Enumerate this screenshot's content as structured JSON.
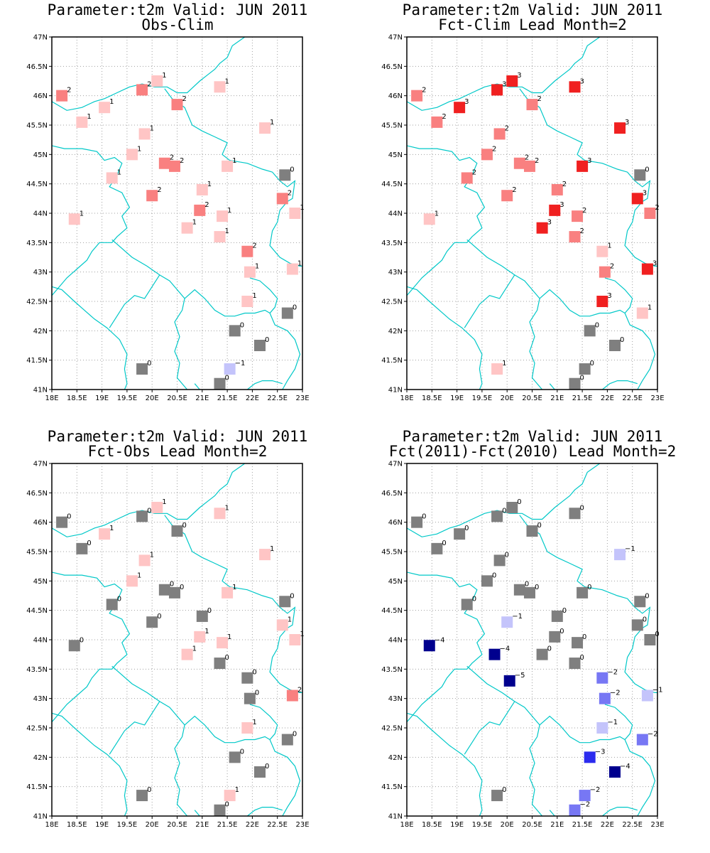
{
  "colors": {
    "neg5": "#00008e",
    "neg4": "#00008e",
    "neg3": "#2b2bee",
    "neg2": "#7777f4",
    "neg1": "#c4c4fb",
    "zero": "#7f7f7f",
    "pos1": "#ffc5c5",
    "pos2": "#f98080",
    "pos3": "#f02020",
    "coast": "#00c8c8",
    "grid": "#a0a0a0",
    "frame": "#000000"
  },
  "x_ticks": [
    "18E",
    "18.5E",
    "19E",
    "19.5E",
    "20E",
    "20.5E",
    "21E",
    "21.5E",
    "22E",
    "22.5E",
    "23E"
  ],
  "y_ticks": [
    "41N",
    "41.5N",
    "42N",
    "42.5N",
    "43N",
    "43.5N",
    "44N",
    "44.5N",
    "45N",
    "45.5N",
    "46N",
    "46.5N",
    "47N"
  ],
  "chart_data": [
    {
      "type": "scatter",
      "title": "Parameter:t2m Valid: JUN 2011",
      "subtitle": "Obs-Clim",
      "xlim": [
        18,
        23
      ],
      "ylim": [
        41,
        47
      ],
      "stations": [
        {
          "lon": 18.2,
          "lat": 46.0,
          "v": 2
        },
        {
          "lon": 19.8,
          "lat": 46.1,
          "v": 2
        },
        {
          "lon": 20.1,
          "lat": 46.25,
          "v": 1
        },
        {
          "lon": 21.35,
          "lat": 46.15,
          "v": 1
        },
        {
          "lon": 19.05,
          "lat": 45.8,
          "v": 1
        },
        {
          "lon": 20.5,
          "lat": 45.85,
          "v": 2
        },
        {
          "lon": 18.6,
          "lat": 45.55,
          "v": 1
        },
        {
          "lon": 22.25,
          "lat": 45.45,
          "v": 1
        },
        {
          "lon": 19.85,
          "lat": 45.35,
          "v": 1
        },
        {
          "lon": 19.6,
          "lat": 45.0,
          "v": 1
        },
        {
          "lon": 20.25,
          "lat": 44.85,
          "v": 2
        },
        {
          "lon": 20.45,
          "lat": 44.8,
          "v": 2
        },
        {
          "lon": 21.5,
          "lat": 44.8,
          "v": 1
        },
        {
          "lon": 22.65,
          "lat": 44.65,
          "v": 0
        },
        {
          "lon": 19.2,
          "lat": 44.6,
          "v": 1
        },
        {
          "lon": 20.0,
          "lat": 44.3,
          "v": 2
        },
        {
          "lon": 21.0,
          "lat": 44.4,
          "v": 1
        },
        {
          "lon": 22.6,
          "lat": 44.25,
          "v": 2
        },
        {
          "lon": 20.95,
          "lat": 44.05,
          "v": 2
        },
        {
          "lon": 22.85,
          "lat": 44.0,
          "v": 1
        },
        {
          "lon": 18.45,
          "lat": 43.9,
          "v": 1
        },
        {
          "lon": 21.4,
          "lat": 43.95,
          "v": 1
        },
        {
          "lon": 20.7,
          "lat": 43.75,
          "v": 1
        },
        {
          "lon": 21.35,
          "lat": 43.6,
          "v": 1
        },
        {
          "lon": 21.9,
          "lat": 43.35,
          "v": 2
        },
        {
          "lon": 21.95,
          "lat": 43.0,
          "v": 1
        },
        {
          "lon": 22.8,
          "lat": 43.05,
          "v": 1
        },
        {
          "lon": 21.9,
          "lat": 42.5,
          "v": 1
        },
        {
          "lon": 22.7,
          "lat": 42.3,
          "v": 0
        },
        {
          "lon": 21.65,
          "lat": 42.0,
          "v": 0
        },
        {
          "lon": 22.15,
          "lat": 41.75,
          "v": 0
        },
        {
          "lon": 19.8,
          "lat": 41.35,
          "v": 0
        },
        {
          "lon": 21.55,
          "lat": 41.35,
          "v": -1
        },
        {
          "lon": 21.35,
          "lat": 41.1,
          "v": 0
        }
      ]
    },
    {
      "type": "scatter",
      "title": "Parameter:t2m Valid: JUN 2011",
      "subtitle": "Fct-Clim Lead Month=2",
      "xlim": [
        18,
        23
      ],
      "ylim": [
        41,
        47
      ],
      "stations": [
        {
          "lon": 18.2,
          "lat": 46.0,
          "v": 2
        },
        {
          "lon": 19.8,
          "lat": 46.1,
          "v": 3
        },
        {
          "lon": 20.1,
          "lat": 46.25,
          "v": 3
        },
        {
          "lon": 21.35,
          "lat": 46.15,
          "v": 3
        },
        {
          "lon": 19.05,
          "lat": 45.8,
          "v": 3
        },
        {
          "lon": 20.5,
          "lat": 45.85,
          "v": 2
        },
        {
          "lon": 18.6,
          "lat": 45.55,
          "v": 2
        },
        {
          "lon": 22.25,
          "lat": 45.45,
          "v": 3
        },
        {
          "lon": 19.85,
          "lat": 45.35,
          "v": 2
        },
        {
          "lon": 19.6,
          "lat": 45.0,
          "v": 2
        },
        {
          "lon": 20.25,
          "lat": 44.85,
          "v": 2
        },
        {
          "lon": 20.45,
          "lat": 44.8,
          "v": 2
        },
        {
          "lon": 21.5,
          "lat": 44.8,
          "v": 3
        },
        {
          "lon": 22.65,
          "lat": 44.65,
          "v": 0
        },
        {
          "lon": 19.2,
          "lat": 44.6,
          "v": 2
        },
        {
          "lon": 20.0,
          "lat": 44.3,
          "v": 2
        },
        {
          "lon": 21.0,
          "lat": 44.4,
          "v": 2
        },
        {
          "lon": 22.6,
          "lat": 44.25,
          "v": 3
        },
        {
          "lon": 20.95,
          "lat": 44.05,
          "v": 3
        },
        {
          "lon": 22.85,
          "lat": 44.0,
          "v": 2
        },
        {
          "lon": 18.45,
          "lat": 43.9,
          "v": 1
        },
        {
          "lon": 21.4,
          "lat": 43.95,
          "v": 2
        },
        {
          "lon": 20.7,
          "lat": 43.75,
          "v": 3
        },
        {
          "lon": 21.35,
          "lat": 43.6,
          "v": 2
        },
        {
          "lon": 21.9,
          "lat": 43.35,
          "v": 1
        },
        {
          "lon": 21.95,
          "lat": 43.0,
          "v": 2
        },
        {
          "lon": 22.8,
          "lat": 43.05,
          "v": 3
        },
        {
          "lon": 21.9,
          "lat": 42.5,
          "v": 3
        },
        {
          "lon": 22.7,
          "lat": 42.3,
          "v": 1
        },
        {
          "lon": 21.65,
          "lat": 42.0,
          "v": 0
        },
        {
          "lon": 22.15,
          "lat": 41.75,
          "v": 0
        },
        {
          "lon": 19.8,
          "lat": 41.35,
          "v": 1
        },
        {
          "lon": 21.55,
          "lat": 41.35,
          "v": 0
        },
        {
          "lon": 21.35,
          "lat": 41.1,
          "v": 0
        }
      ]
    },
    {
      "type": "scatter",
      "title": "Parameter:t2m Valid: JUN 2011",
      "subtitle": "Fct-Obs Lead Month=2",
      "xlim": [
        18,
        23
      ],
      "ylim": [
        41,
        47
      ],
      "stations": [
        {
          "lon": 18.2,
          "lat": 46.0,
          "v": 0
        },
        {
          "lon": 19.8,
          "lat": 46.1,
          "v": 0
        },
        {
          "lon": 20.1,
          "lat": 46.25,
          "v": 1
        },
        {
          "lon": 21.35,
          "lat": 46.15,
          "v": 1
        },
        {
          "lon": 19.05,
          "lat": 45.8,
          "v": 1
        },
        {
          "lon": 20.5,
          "lat": 45.85,
          "v": 0
        },
        {
          "lon": 18.6,
          "lat": 45.55,
          "v": 0
        },
        {
          "lon": 22.25,
          "lat": 45.45,
          "v": 1
        },
        {
          "lon": 19.85,
          "lat": 45.35,
          "v": 1
        },
        {
          "lon": 19.6,
          "lat": 45.0,
          "v": 1
        },
        {
          "lon": 20.25,
          "lat": 44.85,
          "v": 0
        },
        {
          "lon": 20.45,
          "lat": 44.8,
          "v": 0
        },
        {
          "lon": 21.5,
          "lat": 44.8,
          "v": 1
        },
        {
          "lon": 22.65,
          "lat": 44.65,
          "v": 0
        },
        {
          "lon": 19.2,
          "lat": 44.6,
          "v": 0
        },
        {
          "lon": 20.0,
          "lat": 44.3,
          "v": 0
        },
        {
          "lon": 21.0,
          "lat": 44.4,
          "v": 0
        },
        {
          "lon": 22.6,
          "lat": 44.25,
          "v": 1
        },
        {
          "lon": 20.95,
          "lat": 44.05,
          "v": 1
        },
        {
          "lon": 22.85,
          "lat": 44.0,
          "v": 1
        },
        {
          "lon": 18.45,
          "lat": 43.9,
          "v": 0
        },
        {
          "lon": 21.4,
          "lat": 43.95,
          "v": 1
        },
        {
          "lon": 20.7,
          "lat": 43.75,
          "v": 1
        },
        {
          "lon": 21.35,
          "lat": 43.6,
          "v": 0
        },
        {
          "lon": 21.9,
          "lat": 43.35,
          "v": 0
        },
        {
          "lon": 21.95,
          "lat": 43.0,
          "v": 0
        },
        {
          "lon": 22.8,
          "lat": 43.05,
          "v": 2
        },
        {
          "lon": 21.9,
          "lat": 42.5,
          "v": 1
        },
        {
          "lon": 22.7,
          "lat": 42.3,
          "v": 0
        },
        {
          "lon": 21.65,
          "lat": 42.0,
          "v": 0
        },
        {
          "lon": 22.15,
          "lat": 41.75,
          "v": 0
        },
        {
          "lon": 19.8,
          "lat": 41.35,
          "v": 0
        },
        {
          "lon": 21.55,
          "lat": 41.35,
          "v": 1
        },
        {
          "lon": 21.35,
          "lat": 41.1,
          "v": 0
        }
      ]
    },
    {
      "type": "scatter",
      "title": "Parameter:t2m Valid: JUN 2011",
      "subtitle": "Fct(2011)-Fct(2010) Lead Month=2",
      "xlim": [
        18,
        23
      ],
      "ylim": [
        41,
        47
      ],
      "stations": [
        {
          "lon": 18.2,
          "lat": 46.0,
          "v": 0
        },
        {
          "lon": 19.8,
          "lat": 46.1,
          "v": 0
        },
        {
          "lon": 20.1,
          "lat": 46.25,
          "v": 0
        },
        {
          "lon": 21.35,
          "lat": 46.15,
          "v": 0
        },
        {
          "lon": 19.05,
          "lat": 45.8,
          "v": 0
        },
        {
          "lon": 20.5,
          "lat": 45.85,
          "v": 0
        },
        {
          "lon": 18.6,
          "lat": 45.55,
          "v": 0
        },
        {
          "lon": 22.25,
          "lat": 45.45,
          "v": -1
        },
        {
          "lon": 19.85,
          "lat": 45.35,
          "v": 0
        },
        {
          "lon": 19.6,
          "lat": 45.0,
          "v": 0
        },
        {
          "lon": 20.25,
          "lat": 44.85,
          "v": 0
        },
        {
          "lon": 20.45,
          "lat": 44.8,
          "v": 0
        },
        {
          "lon": 21.5,
          "lat": 44.8,
          "v": 0
        },
        {
          "lon": 22.65,
          "lat": 44.65,
          "v": 0
        },
        {
          "lon": 19.2,
          "lat": 44.6,
          "v": 0
        },
        {
          "lon": 20.0,
          "lat": 44.3,
          "v": -1
        },
        {
          "lon": 21.0,
          "lat": 44.4,
          "v": 0
        },
        {
          "lon": 22.6,
          "lat": 44.25,
          "v": 0
        },
        {
          "lon": 20.95,
          "lat": 44.05,
          "v": 0
        },
        {
          "lon": 22.85,
          "lat": 44.0,
          "v": 0
        },
        {
          "lon": 18.45,
          "lat": 43.9,
          "v": -4
        },
        {
          "lon": 21.4,
          "lat": 43.95,
          "v": 0
        },
        {
          "lon": 20.7,
          "lat": 43.75,
          "v": 0
        },
        {
          "lon": 21.35,
          "lat": 43.6,
          "v": 0
        },
        {
          "lon": 21.9,
          "lat": 43.35,
          "v": -2
        },
        {
          "lon": 21.95,
          "lat": 43.0,
          "v": -2
        },
        {
          "lon": 22.8,
          "lat": 43.05,
          "v": -1
        },
        {
          "lon": 21.9,
          "lat": 42.5,
          "v": -1
        },
        {
          "lon": 22.7,
          "lat": 42.3,
          "v": -2
        },
        {
          "lon": 21.65,
          "lat": 42.0,
          "v": -3
        },
        {
          "lon": 22.15,
          "lat": 41.75,
          "v": -4
        },
        {
          "lon": 19.8,
          "lat": 41.35,
          "v": 0
        },
        {
          "lon": 21.55,
          "lat": 41.35,
          "v": -2
        },
        {
          "lon": 21.35,
          "lat": 41.1,
          "v": -2
        },
        {
          "lon": 19.75,
          "lat": 43.75,
          "v": -4
        },
        {
          "lon": 20.05,
          "lat": 43.3,
          "v": -5
        }
      ]
    }
  ]
}
